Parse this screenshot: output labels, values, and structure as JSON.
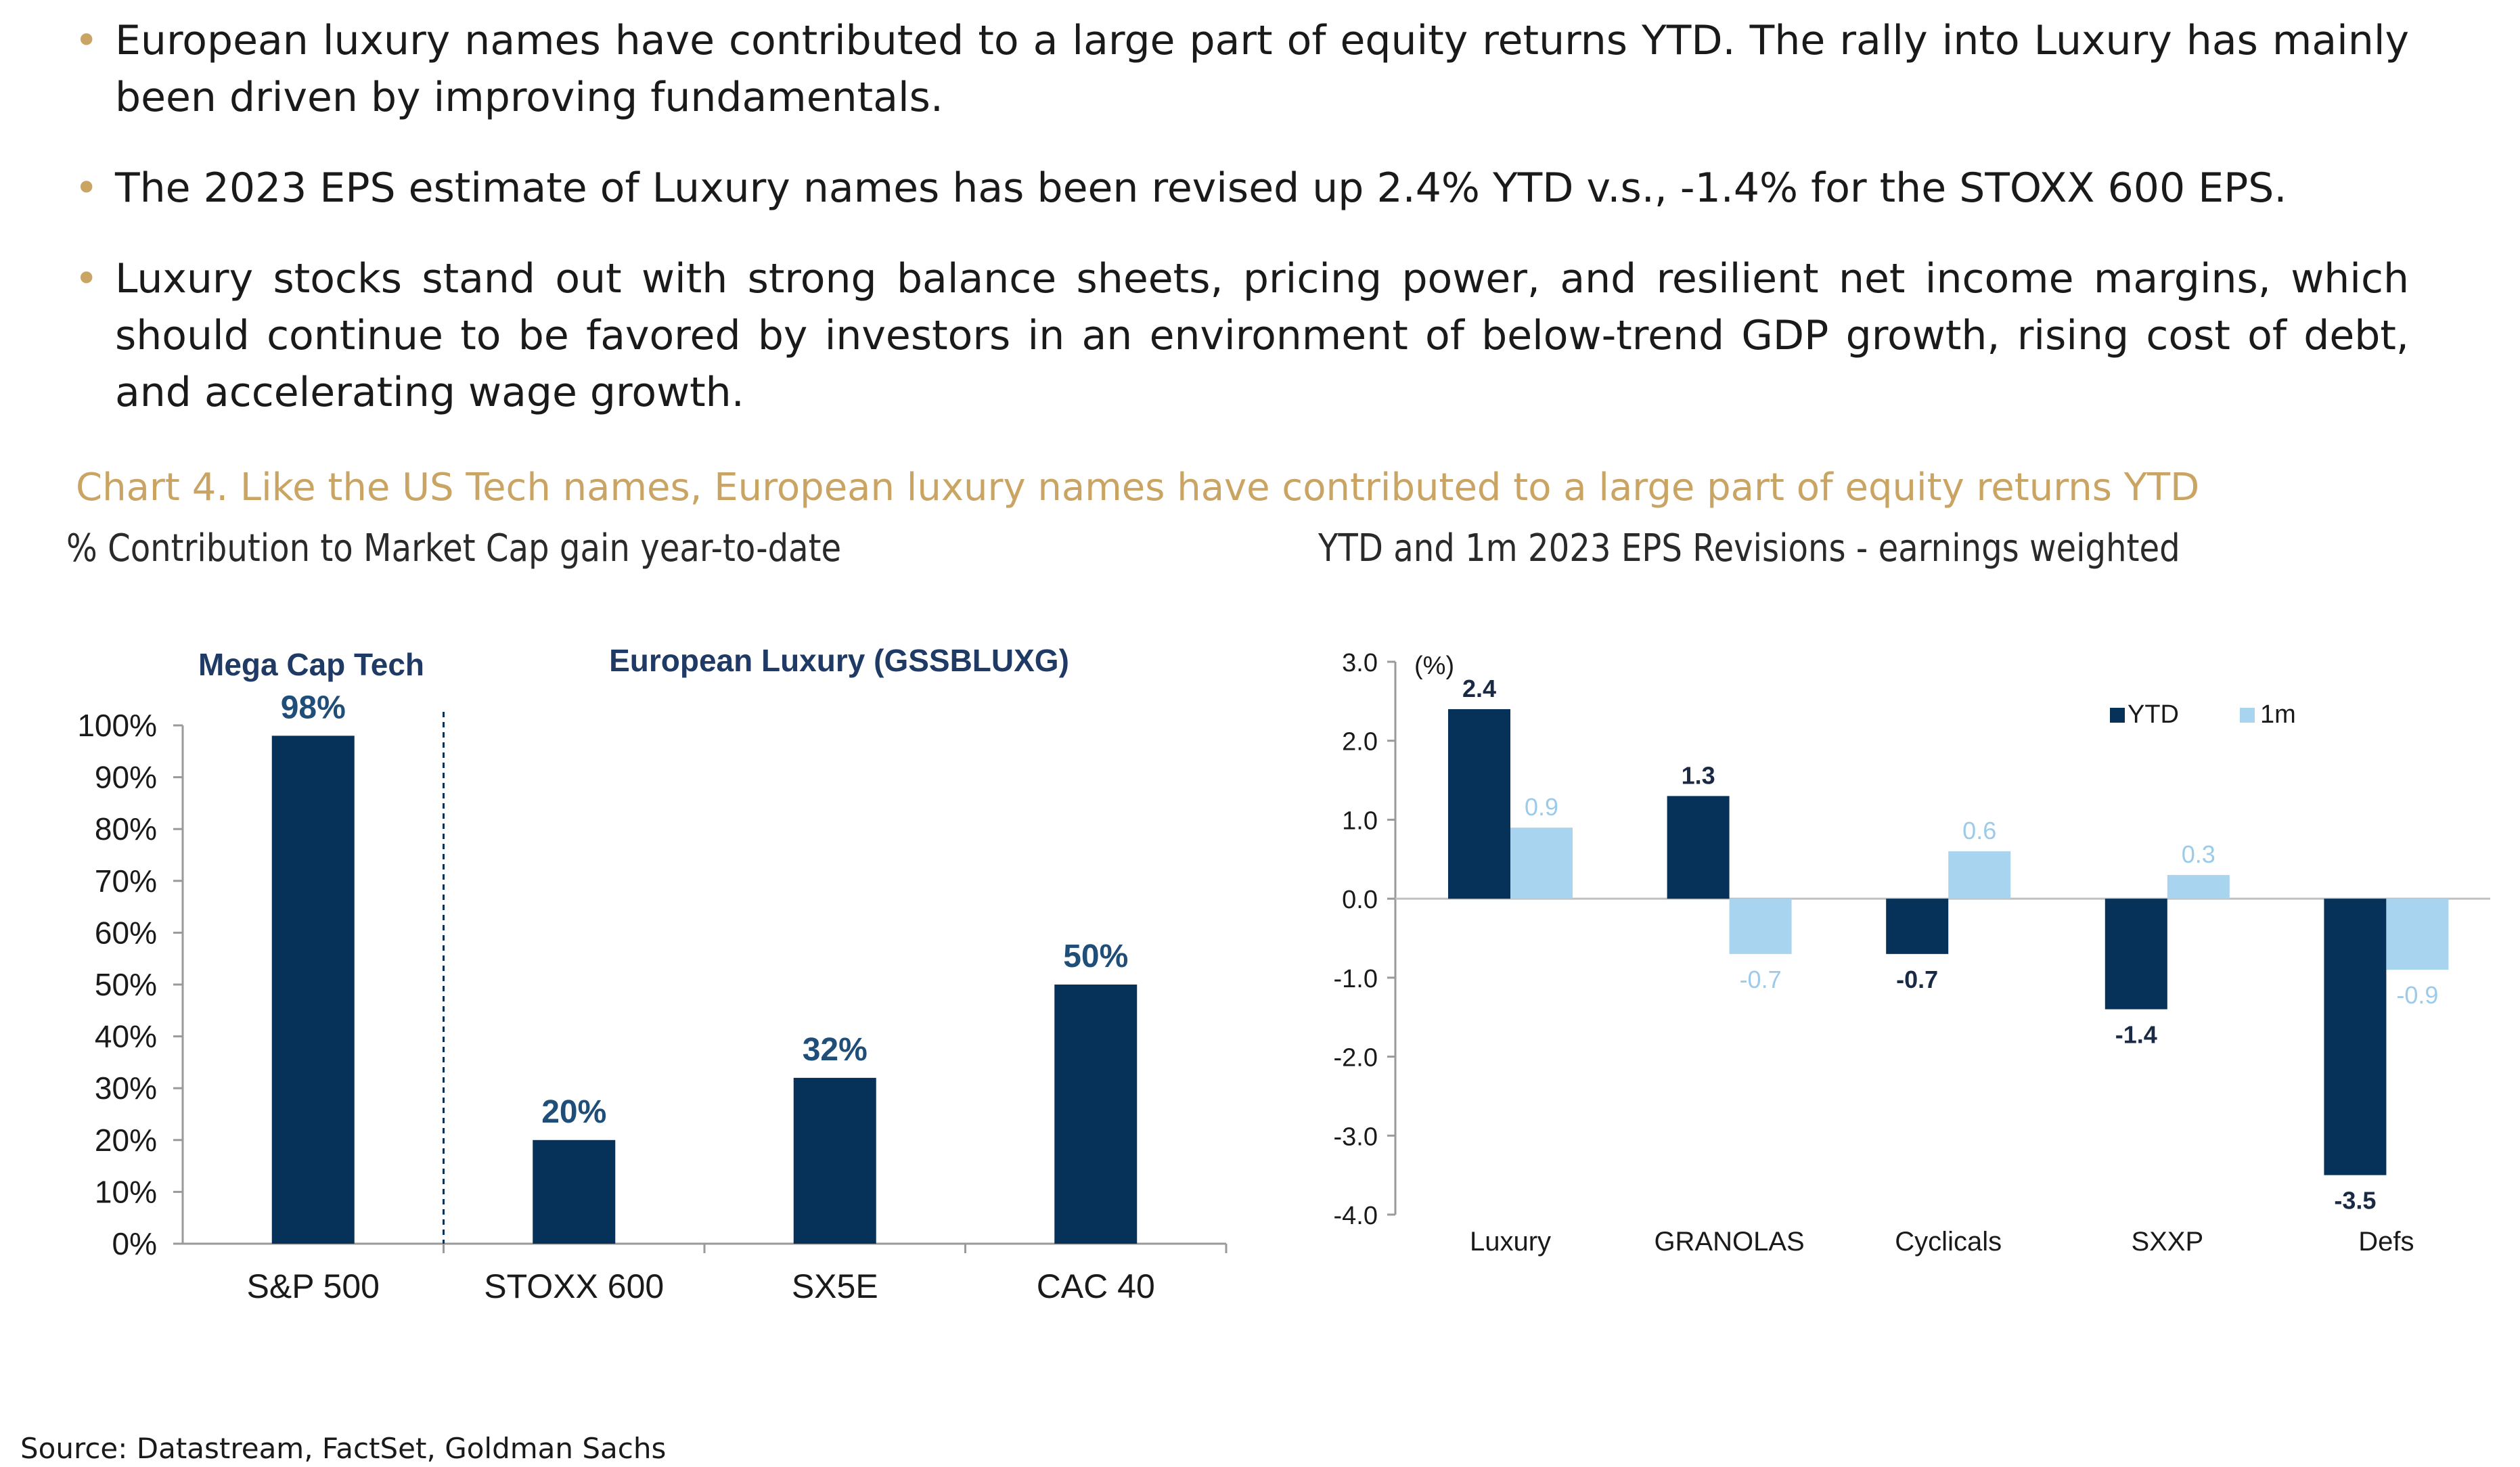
{
  "bullets": [
    "European luxury names have contributed to a large part of equity returns YTD. The rally into Luxury has mainly been driven by improving fundamentals.",
    "The 2023 EPS estimate of Luxury names has been revised up 2.4% YTD v.s., -1.4% for the STOXX 600 EPS.",
    "Luxury stocks stand out with strong balance sheets, pricing power, and resilient net income margins, which should continue to be favored by investors in an environment of below-trend GDP growth, rising cost of debt, and accelerating wage growth."
  ],
  "bullet_marker": "•",
  "caption": "Chart 4. Like the US Tech names, European luxury names have contributed to a large part of equity returns YTD",
  "source": "Source: Datastream, FactSet, Goldman Sachs",
  "colors": {
    "navy": "#06325a",
    "light": "#a9d4f0",
    "gold": "#c9a463"
  },
  "chart_data": [
    {
      "type": "bar",
      "title": "% Contribution to Market Cap gain year-to-date",
      "categories": [
        "S&P 500",
        "STOXX 600",
        "SX5E",
        "CAC 40"
      ],
      "values": [
        98,
        20,
        32,
        50
      ],
      "data_labels": [
        "98%",
        "20%",
        "32%",
        "50%"
      ],
      "ylim": [
        0,
        100
      ],
      "yticks": [
        "0%",
        "10%",
        "20%",
        "30%",
        "40%",
        "50%",
        "60%",
        "70%",
        "80%",
        "90%",
        "100%"
      ],
      "annotations": [
        "Mega Cap Tech",
        "European Luxury (GSSBLUXG)"
      ]
    },
    {
      "type": "bar",
      "title": "YTD and 1m 2023 EPS Revisions - earnings weighted",
      "unit_label": "(%)",
      "categories": [
        "Luxury",
        "GRANOLAS",
        "Cyclicals",
        "SXXP",
        "Defs"
      ],
      "series": [
        {
          "name": "YTD",
          "values": [
            2.4,
            1.3,
            -0.7,
            -1.4,
            -3.5
          ]
        },
        {
          "name": "1m",
          "values": [
            0.9,
            -0.7,
            0.6,
            0.3,
            -0.9
          ]
        }
      ],
      "ylim": [
        -4.0,
        3.0
      ],
      "yticks": [
        "-4.0",
        "-3.0",
        "-2.0",
        "-1.0",
        "0.0",
        "1.0",
        "2.0",
        "3.0"
      ]
    }
  ]
}
